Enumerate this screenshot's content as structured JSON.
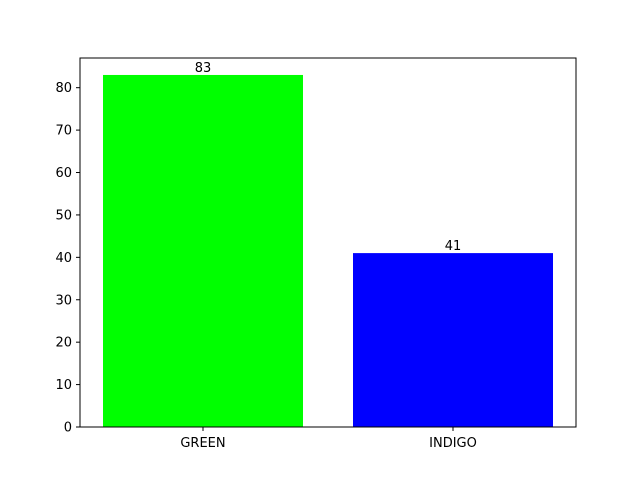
{
  "chart_data": {
    "type": "bar",
    "categories": [
      "GREEN",
      "INDIGO"
    ],
    "values": [
      83,
      41
    ],
    "colors": [
      "#00ff00",
      "#0000ff"
    ],
    "title": "",
    "xlabel": "",
    "ylabel": "",
    "ylim": [
      0,
      87
    ],
    "yticks": [
      0,
      10,
      20,
      30,
      40,
      50,
      60,
      70,
      80
    ],
    "data_labels": [
      "83",
      "41"
    ],
    "grid": false,
    "legend": "none"
  }
}
